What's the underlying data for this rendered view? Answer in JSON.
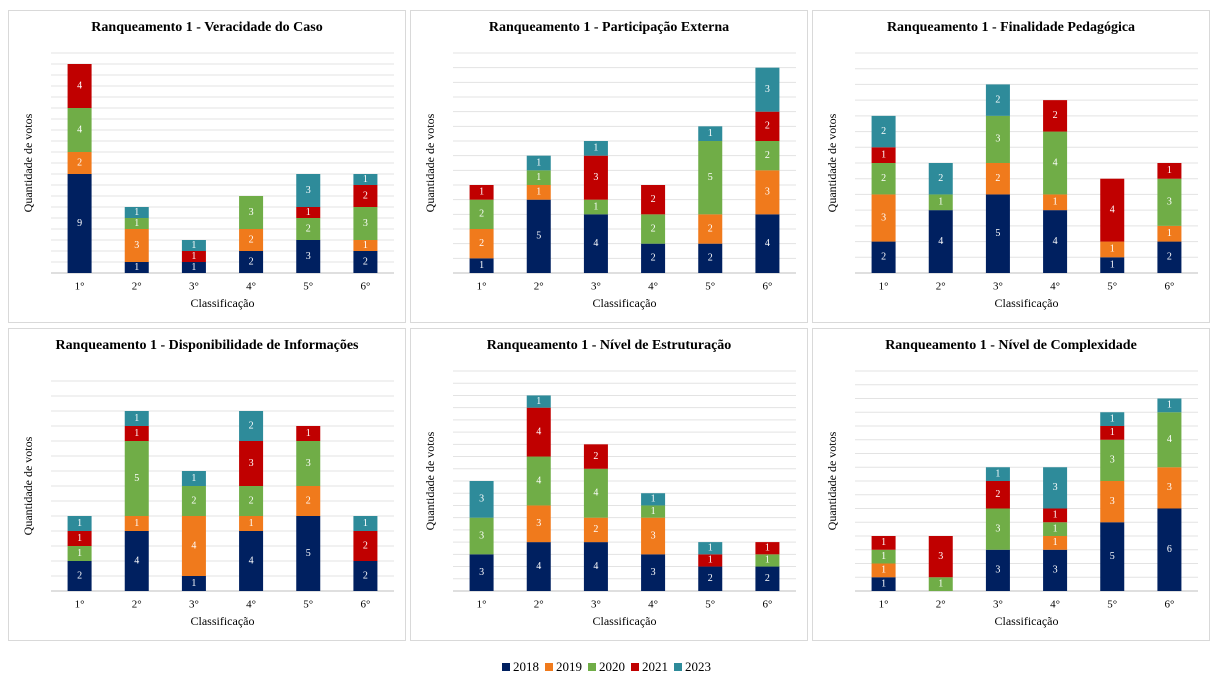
{
  "chart_data": [
    {
      "type": "stacked-bar",
      "title": "Ranqueamento 1 - Veracidade do Caso",
      "x_label": "Classificação",
      "y_label": "Quantidade de votos",
      "categories": [
        "1°",
        "2°",
        "3°",
        "4°",
        "5°",
        "6°"
      ],
      "ylim": [
        0,
        20
      ],
      "yticks": [
        0,
        1,
        2,
        3,
        4,
        5,
        6,
        7,
        8,
        9,
        10,
        11,
        12,
        13,
        14,
        15,
        16,
        17,
        18,
        19,
        20
      ],
      "grid": true,
      "series": [
        {
          "name": "2018",
          "color": "#002060",
          "values": [
            9,
            1,
            1,
            2,
            3,
            2
          ]
        },
        {
          "name": "2019",
          "color": "#f07a1c",
          "values": [
            2,
            3,
            0,
            2,
            0,
            1
          ]
        },
        {
          "name": "2020",
          "color": "#70ad47",
          "values": [
            4,
            1,
            0,
            3,
            2,
            3
          ]
        },
        {
          "name": "2021",
          "color": "#c00000",
          "values": [
            4,
            0,
            1,
            0,
            1,
            2
          ]
        },
        {
          "name": "2023",
          "color": "#2e8b9a",
          "values": [
            0,
            1,
            1,
            0,
            3,
            1
          ]
        }
      ]
    },
    {
      "type": "stacked-bar",
      "title": "Ranqueamento 1 - Participação Externa",
      "x_label": "Classificação",
      "y_label": "Quantidade de votos",
      "categories": [
        "1°",
        "2°",
        "3°",
        "4°",
        "5°",
        "6°"
      ],
      "ylim": [
        0,
        15
      ],
      "yticks": [
        0,
        1,
        2,
        3,
        4,
        5,
        6,
        7,
        8,
        9,
        10,
        11,
        12,
        13,
        14,
        15
      ],
      "grid": true,
      "series": [
        {
          "name": "2018",
          "color": "#002060",
          "values": [
            1,
            5,
            4,
            2,
            2,
            4
          ]
        },
        {
          "name": "2019",
          "color": "#f07a1c",
          "values": [
            2,
            1,
            0,
            0,
            2,
            3
          ]
        },
        {
          "name": "2020",
          "color": "#70ad47",
          "values": [
            2,
            1,
            1,
            2,
            5,
            2
          ]
        },
        {
          "name": "2021",
          "color": "#c00000",
          "values": [
            1,
            0,
            3,
            2,
            0,
            2
          ]
        },
        {
          "name": "2023",
          "color": "#2e8b9a",
          "values": [
            0,
            1,
            1,
            0,
            1,
            3
          ]
        }
      ]
    },
    {
      "type": "stacked-bar",
      "title": "Ranqueamento 1 - Finalidade Pedagógica",
      "x_label": "Classificação",
      "y_label": "Quantidade de votos",
      "categories": [
        "1°",
        "2°",
        "3°",
        "4°",
        "5°",
        "6°"
      ],
      "ylim": [
        0,
        14
      ],
      "yticks": [
        0,
        1,
        2,
        3,
        4,
        5,
        6,
        7,
        8,
        9,
        10,
        11,
        12,
        13,
        14
      ],
      "grid": true,
      "series": [
        {
          "name": "2018",
          "color": "#002060",
          "values": [
            2,
            4,
            5,
            4,
            1,
            2
          ]
        },
        {
          "name": "2019",
          "color": "#f07a1c",
          "values": [
            3,
            0,
            2,
            1,
            1,
            1
          ]
        },
        {
          "name": "2020",
          "color": "#70ad47",
          "values": [
            2,
            1,
            3,
            4,
            0,
            3
          ]
        },
        {
          "name": "2021",
          "color": "#c00000",
          "values": [
            1,
            0,
            0,
            2,
            4,
            1
          ]
        },
        {
          "name": "2023",
          "color": "#2e8b9a",
          "values": [
            2,
            2,
            2,
            0,
            0,
            0
          ]
        }
      ]
    },
    {
      "type": "stacked-bar",
      "title": "Ranqueamento 1 - Disponibilidade de Informações",
      "x_label": "Classificação",
      "y_label": "Quantidade de votos",
      "categories": [
        "1°",
        "2°",
        "3°",
        "4°",
        "5°",
        "6°"
      ],
      "ylim": [
        0,
        14
      ],
      "yticks": [
        0,
        1,
        2,
        3,
        4,
        5,
        6,
        7,
        8,
        9,
        10,
        11,
        12,
        13,
        14
      ],
      "grid": true,
      "series": [
        {
          "name": "2018",
          "color": "#002060",
          "values": [
            2,
            4,
            1,
            4,
            5,
            2
          ]
        },
        {
          "name": "2019",
          "color": "#f07a1c",
          "values": [
            0,
            1,
            4,
            1,
            2,
            0
          ]
        },
        {
          "name": "2020",
          "color": "#70ad47",
          "values": [
            1,
            5,
            2,
            2,
            3,
            0
          ]
        },
        {
          "name": "2021",
          "color": "#c00000",
          "values": [
            1,
            1,
            0,
            3,
            1,
            2
          ]
        },
        {
          "name": "2023",
          "color": "#2e8b9a",
          "values": [
            1,
            1,
            1,
            2,
            0,
            1
          ]
        }
      ]
    },
    {
      "type": "stacked-bar",
      "title": "Ranqueamento 1 - Nível de Estruturação",
      "x_label": "Classificação",
      "y_label": "Quantidade de votos",
      "categories": [
        "1°",
        "2°",
        "3°",
        "4°",
        "5°",
        "6°"
      ],
      "ylim": [
        0,
        18
      ],
      "yticks": [
        0,
        1,
        2,
        3,
        4,
        5,
        6,
        7,
        8,
        9,
        10,
        11,
        12,
        13,
        14,
        15,
        16,
        17,
        18
      ],
      "grid": true,
      "series": [
        {
          "name": "2018",
          "color": "#002060",
          "values": [
            3,
            4,
            4,
            3,
            2,
            2
          ]
        },
        {
          "name": "2019",
          "color": "#f07a1c",
          "values": [
            0,
            3,
            2,
            3,
            0,
            0
          ]
        },
        {
          "name": "2020",
          "color": "#70ad47",
          "values": [
            3,
            4,
            4,
            1,
            0,
            1
          ]
        },
        {
          "name": "2021",
          "color": "#c00000",
          "values": [
            0,
            4,
            2,
            0,
            1,
            1
          ]
        },
        {
          "name": "2023",
          "color": "#2e8b9a",
          "values": [
            3,
            1,
            0,
            1,
            1,
            0
          ]
        }
      ]
    },
    {
      "type": "stacked-bar",
      "title": "Ranqueamento 1 - Nível de Complexidade",
      "x_label": "Classificação",
      "y_label": "Quantidade de votos",
      "categories": [
        "1°",
        "2°",
        "3°",
        "4°",
        "5°",
        "6°"
      ],
      "ylim": [
        0,
        16
      ],
      "yticks": [
        0,
        1,
        2,
        3,
        4,
        5,
        6,
        7,
        8,
        9,
        10,
        11,
        12,
        13,
        14,
        15,
        16
      ],
      "grid": true,
      "series": [
        {
          "name": "2018",
          "color": "#002060",
          "values": [
            1,
            0,
            3,
            3,
            5,
            6
          ]
        },
        {
          "name": "2019",
          "color": "#f07a1c",
          "values": [
            1,
            0,
            0,
            1,
            3,
            3
          ]
        },
        {
          "name": "2020",
          "color": "#70ad47",
          "values": [
            1,
            1,
            3,
            1,
            3,
            4
          ]
        },
        {
          "name": "2021",
          "color": "#c00000",
          "values": [
            1,
            3,
            2,
            1,
            1,
            0
          ]
        },
        {
          "name": "2023",
          "color": "#2e8b9a",
          "values": [
            0,
            0,
            1,
            3,
            1,
            1
          ]
        }
      ]
    }
  ]
}
